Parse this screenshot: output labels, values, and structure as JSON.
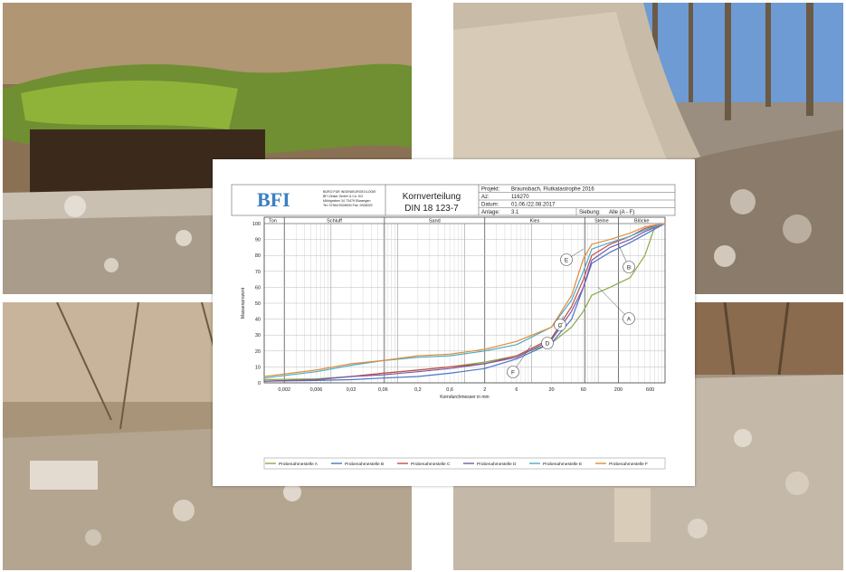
{
  "header": {
    "logo": "BFI",
    "company_lines": [
      "BÜRO FÜR INGENIEURGEOLOGIE",
      "BFI Zeiser GmbH & Co. KG",
      "Mühlgraben 34      73479 Ellwangen",
      "Tel: 07961/9328000      Fax: 9328029"
    ],
    "title": "Kornverteilung",
    "norm": "DIN 18 123-7",
    "projekt_label": "Projekt:",
    "projekt": "Braunsbach, Flutkatastrophe 2016",
    "az_label": "Az:",
    "az": "116270",
    "datum_label": "Datum:",
    "datum": "01.06./22.08.2017",
    "anlage_label": "Anlage:",
    "anlage": "3.1",
    "siebung_label": "Siebung:",
    "siebung": "Alle (A - F)"
  },
  "chart_data": {
    "type": "line",
    "title": "",
    "xlabel": "Korndurchmesser in mm",
    "ylabel": "Massenprozent",
    "xscale": "log",
    "xlim": [
      0.001,
      1000
    ],
    "ylim": [
      0,
      100
    ],
    "x_ticks": [
      "0,002",
      "0,006",
      "0,02",
      "0,06",
      "0,2",
      "0,6",
      "2",
      "6",
      "20",
      "60",
      "200",
      "600"
    ],
    "y_ticks": [
      "0",
      "10",
      "20",
      "30",
      "40",
      "50",
      "60",
      "70",
      "80",
      "90",
      "100"
    ],
    "soil_classes": [
      "Ton",
      "Schluff",
      "Sand",
      "Kies",
      "Steine",
      "Blöcke"
    ],
    "grid": true,
    "legend_position": "bottom",
    "series": [
      {
        "name": "Probenahmestelle A",
        "label": "A",
        "color": "#8aaa45",
        "x": [
          0.001,
          0.006,
          0.02,
          0.06,
          0.2,
          0.6,
          2,
          6,
          20,
          40,
          60,
          80,
          150,
          300,
          500,
          700,
          1000
        ],
        "y": [
          2,
          2.5,
          4,
          6,
          8,
          10,
          13,
          17,
          25,
          35,
          45,
          55,
          60,
          66,
          80,
          98,
          100
        ]
      },
      {
        "name": "Probenahmestelle B",
        "label": "B",
        "color": "#4a74c4",
        "x": [
          0.001,
          0.006,
          0.02,
          0.06,
          0.2,
          0.6,
          2,
          6,
          20,
          40,
          60,
          80,
          150,
          300,
          600,
          1000
        ],
        "y": [
          1,
          1.5,
          2,
          3,
          4,
          6,
          9,
          15,
          25,
          40,
          60,
          75,
          82,
          88,
          95,
          100
        ]
      },
      {
        "name": "Probenahmestelle C",
        "label": "C",
        "color": "#c0504d",
        "x": [
          0.001,
          0.006,
          0.02,
          0.06,
          0.2,
          0.6,
          2,
          6,
          20,
          40,
          60,
          80,
          150,
          300,
          500,
          1000
        ],
        "y": [
          1,
          2,
          4,
          6,
          8,
          10,
          12,
          17,
          28,
          48,
          65,
          80,
          87,
          92,
          97,
          100
        ]
      },
      {
        "name": "Probenahmestelle D",
        "label": "D",
        "color": "#7b5aa6",
        "x": [
          0.001,
          0.006,
          0.02,
          0.06,
          0.2,
          0.6,
          2,
          6,
          20,
          40,
          60,
          80,
          150,
          300,
          500,
          1000
        ],
        "y": [
          1,
          2,
          4,
          5,
          7,
          9,
          12,
          16,
          27,
          45,
          60,
          77,
          85,
          90,
          95,
          100
        ]
      },
      {
        "name": "Probenahmestelle E",
        "label": "E",
        "color": "#4bacc6",
        "x": [
          0.001,
          0.006,
          0.02,
          0.06,
          0.2,
          0.6,
          2,
          6,
          20,
          40,
          60,
          80,
          150,
          300,
          500,
          1000
        ],
        "y": [
          3,
          7,
          11,
          14,
          16,
          17,
          20,
          24,
          35,
          52,
          70,
          84,
          88,
          92,
          96,
          100
        ]
      },
      {
        "name": "Probenahmestelle F",
        "label": "F",
        "color": "#e08c3a",
        "x": [
          0.001,
          0.006,
          0.02,
          0.06,
          0.2,
          0.6,
          2,
          6,
          20,
          40,
          60,
          80,
          150,
          300,
          500,
          1000
        ],
        "y": [
          4,
          8,
          12,
          14,
          17,
          18,
          21,
          26,
          35,
          55,
          78,
          87,
          90,
          94,
          98,
          100
        ]
      }
    ]
  }
}
